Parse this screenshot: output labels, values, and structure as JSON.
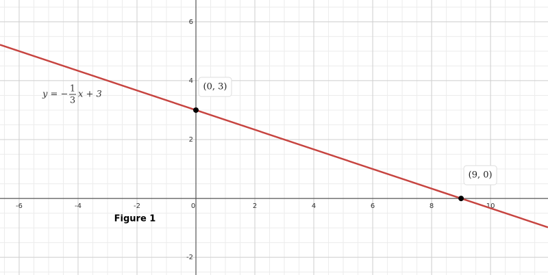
{
  "chart_data": {
    "type": "line",
    "caption": "Figure 1",
    "equation": {
      "lhs": "y = −",
      "numerator": "1",
      "denominator": "3",
      "rest": "x + 3"
    },
    "xlim": [
      -6.65,
      11.95
    ],
    "ylim": [
      -2.6,
      6.74
    ],
    "xticks": [
      -6,
      -4,
      -2,
      0,
      2,
      4,
      6,
      8,
      10
    ],
    "yticks": [
      -2,
      2,
      4,
      6
    ],
    "grid": true,
    "minor_grid": 0.5,
    "series": [
      {
        "color": "#c74440",
        "x": [
          -6.65,
          0,
          9,
          11.95
        ],
        "values": [
          5.22,
          3,
          0,
          -0.98
        ]
      }
    ],
    "points": {
      "x": [
        0,
        9
      ],
      "y": [
        3,
        0
      ],
      "labels": [
        "(0, 3)",
        "(9, 0)"
      ],
      "color": "#000000"
    }
  }
}
